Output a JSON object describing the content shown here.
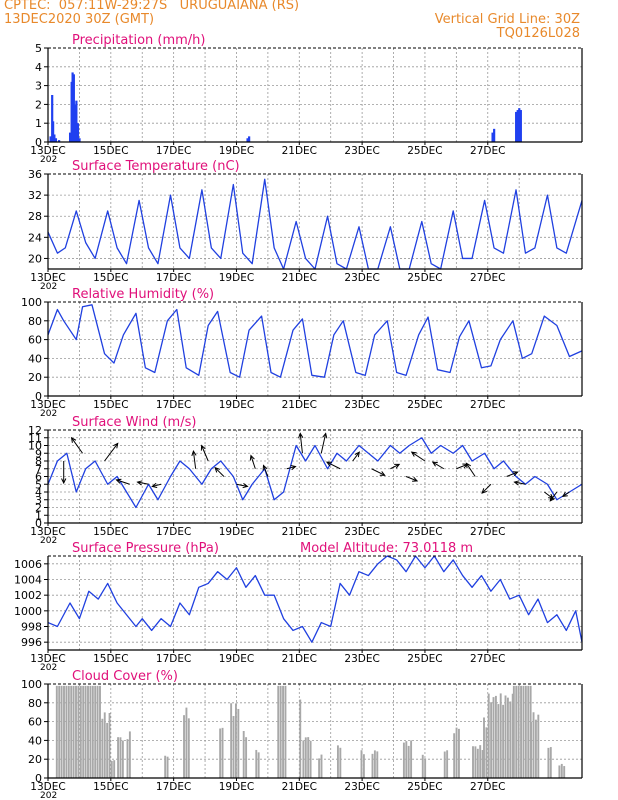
{
  "colors": {
    "header": "#e8892b",
    "title": "#e0107a",
    "line": "#2040e0",
    "bar": "#2040f0",
    "cloud": "#a8a8a8",
    "wind_arrow": "#000000"
  },
  "header": {
    "line1_left": "CPTEC:  057:11W-29:27S   URUGUAIANA (RS)",
    "line2_left": "13DEC2020 30Z (GMT)",
    "line1_right": "Vertical Grid Line: 30Z",
    "line2_right": "TQ0126L028"
  },
  "x_axis": {
    "ticks": [
      "13DEC",
      "15DEC",
      "17DEC",
      "19DEC",
      "21DEC",
      "23DEC",
      "25DEC",
      "27DEC"
    ],
    "under_label": "202"
  },
  "chart_data": [
    {
      "id": "precip",
      "type": "bar",
      "title": "Precipitation (mm/h)",
      "ylim": [
        0,
        5
      ],
      "yticks": [
        0,
        1,
        2,
        3,
        4,
        5
      ],
      "grid": true,
      "x_days": [
        0.08,
        0.13,
        0.16,
        0.2,
        0.25,
        0.35,
        0.7,
        0.75,
        0.78,
        0.82,
        0.86,
        0.9,
        0.95,
        1.0,
        6.35,
        6.4,
        14.15,
        14.2,
        14.9,
        14.95,
        15.0,
        15.05
      ],
      "values": [
        0.3,
        2.5,
        1.1,
        0.4,
        0.2,
        0.1,
        0.5,
        3.2,
        3.7,
        3.6,
        2.0,
        2.2,
        1.0,
        0.2,
        0.2,
        0.3,
        0.5,
        0.7,
        1.6,
        1.7,
        1.8,
        1.7
      ]
    },
    {
      "id": "temp",
      "type": "line",
      "title": "Surface Temperature (nC)",
      "ylim": [
        18,
        36
      ],
      "yticks": [
        20,
        24,
        28,
        32,
        36
      ],
      "grid": true,
      "series": [
        {
          "x": [
            0,
            0.3,
            0.55,
            0.9,
            1.2,
            1.5,
            1.9,
            2.2,
            2.5,
            2.9,
            3.2,
            3.5,
            3.9,
            4.2,
            4.5,
            4.9,
            5.2,
            5.5,
            5.9,
            6.2,
            6.5,
            6.9,
            7.2,
            7.5,
            7.9,
            8.2,
            8.5,
            8.9,
            9.2,
            9.5,
            9.9,
            10.2,
            10.5,
            10.9,
            11.2,
            11.5,
            11.9,
            12.2,
            12.5,
            12.9,
            13.2,
            13.5,
            13.9,
            14.2,
            14.5,
            14.9,
            15.2,
            15.5,
            15.9,
            16.2,
            16.5,
            17.0
          ],
          "values": [
            25,
            21,
            22,
            29,
            23,
            20,
            29,
            22,
            19,
            31,
            22,
            19,
            32,
            22,
            20,
            33,
            22,
            20,
            34,
            21,
            19,
            35,
            22,
            17,
            27,
            20,
            16,
            28,
            19,
            16,
            26,
            17,
            16,
            26,
            18,
            17,
            27,
            19,
            18,
            29,
            20,
            20,
            31,
            22,
            21,
            33,
            21,
            22,
            32,
            22,
            21,
            31
          ]
        }
      ]
    },
    {
      "id": "rh",
      "type": "line",
      "title": "Relative Humidity (%)",
      "ylim": [
        0,
        100
      ],
      "yticks": [
        0,
        20,
        40,
        60,
        80,
        100
      ],
      "grid": true,
      "series": [
        {
          "x": [
            0,
            0.3,
            0.5,
            0.9,
            1.1,
            1.4,
            1.8,
            2.1,
            2.4,
            2.8,
            3.1,
            3.4,
            3.8,
            4.1,
            4.4,
            4.8,
            5.1,
            5.4,
            5.8,
            6.1,
            6.4,
            6.8,
            7.1,
            7.4,
            7.8,
            8.1,
            8.4,
            8.8,
            9.1,
            9.4,
            9.8,
            10.1,
            10.4,
            10.8,
            11.1,
            11.4,
            11.8,
            12.1,
            12.4,
            12.8,
            13.1,
            13.4,
            13.8,
            14.1,
            14.4,
            14.8,
            15.1,
            15.4,
            15.8,
            16.2,
            16.6,
            17.0
          ],
          "values": [
            65,
            92,
            80,
            60,
            95,
            97,
            45,
            35,
            65,
            88,
            30,
            25,
            80,
            92,
            30,
            22,
            75,
            90,
            25,
            20,
            70,
            85,
            25,
            20,
            70,
            82,
            22,
            20,
            65,
            80,
            25,
            22,
            65,
            80,
            25,
            22,
            65,
            84,
            28,
            25,
            63,
            80,
            30,
            32,
            60,
            80,
            40,
            45,
            85,
            75,
            42,
            48
          ]
        }
      ]
    },
    {
      "id": "wind",
      "type": "line",
      "title": "Surface Wind (m/s)",
      "ylim": [
        0,
        12
      ],
      "yticks": [
        0,
        1,
        2,
        3,
        4,
        5,
        6,
        7,
        8,
        9,
        10,
        11,
        12
      ],
      "grid": true,
      "series": [
        {
          "x": [
            0,
            0.3,
            0.6,
            0.9,
            1.2,
            1.5,
            1.9,
            2.2,
            2.5,
            2.8,
            3.2,
            3.5,
            3.9,
            4.2,
            4.5,
            4.9,
            5.2,
            5.5,
            5.9,
            6.2,
            6.5,
            6.9,
            7.2,
            7.5,
            7.9,
            8.2,
            8.5,
            8.9,
            9.2,
            9.5,
            9.9,
            10.2,
            10.5,
            10.9,
            11.2,
            11.5,
            11.9,
            12.2,
            12.5,
            12.9,
            13.2,
            13.5,
            13.9,
            14.2,
            14.5,
            14.9,
            15.2,
            15.5,
            15.9,
            16.2,
            16.6,
            17.0
          ],
          "values": [
            5,
            8,
            9,
            4,
            7,
            8,
            5,
            6,
            4,
            2,
            5,
            3,
            6,
            8,
            7,
            5,
            7,
            8,
            6,
            3,
            5,
            7,
            3,
            4,
            10,
            8,
            10,
            7,
            9,
            8,
            10,
            9,
            8,
            10,
            9,
            10,
            11,
            9,
            10,
            9,
            10,
            8,
            9,
            7,
            8,
            6,
            5,
            6,
            5,
            3,
            4,
            5
          ]
        }
      ],
      "arrows": [
        {
          "x": 0.5,
          "speed": 8,
          "u": 0,
          "v": -10
        },
        {
          "x": 1.1,
          "speed": 9,
          "u": -5,
          "v": 7
        },
        {
          "x": 1.8,
          "speed": 8,
          "u": 6,
          "v": 8
        },
        {
          "x": 2.6,
          "speed": 5,
          "u": -6,
          "v": 2
        },
        {
          "x": 3.2,
          "speed": 5,
          "u": -5,
          "v": 1
        },
        {
          "x": 3.6,
          "speed": 5,
          "u": -4,
          "v": -1
        },
        {
          "x": 4.7,
          "speed": 7,
          "u": -1,
          "v": 8
        },
        {
          "x": 5.1,
          "speed": 8,
          "u": -3,
          "v": 7
        },
        {
          "x": 5.6,
          "speed": 6,
          "u": -4,
          "v": 4
        },
        {
          "x": 6.0,
          "speed": 5,
          "u": 5,
          "v": -1
        },
        {
          "x": 6.6,
          "speed": 7,
          "u": -2,
          "v": 6
        },
        {
          "x": 7.0,
          "speed": 6,
          "u": -2,
          "v": 5
        },
        {
          "x": 7.6,
          "speed": 7,
          "u": 4,
          "v": 1
        },
        {
          "x": 8.1,
          "speed": 9,
          "u": -1,
          "v": 9
        },
        {
          "x": 8.7,
          "speed": 9,
          "u": 2,
          "v": 9
        },
        {
          "x": 9.3,
          "speed": 7,
          "u": -6,
          "v": 3
        },
        {
          "x": 9.7,
          "speed": 8,
          "u": 3,
          "v": 4
        },
        {
          "x": 10.3,
          "speed": 7,
          "u": 6,
          "v": -3
        },
        {
          "x": 10.9,
          "speed": 7,
          "u": 4,
          "v": 2
        },
        {
          "x": 11.4,
          "speed": 6,
          "u": 5,
          "v": -2
        },
        {
          "x": 12.0,
          "speed": 8,
          "u": -6,
          "v": 4
        },
        {
          "x": 12.6,
          "speed": 7,
          "u": -5,
          "v": 3
        },
        {
          "x": 13.0,
          "speed": 7,
          "u": 5,
          "v": 2
        },
        {
          "x": 13.6,
          "speed": 6,
          "u": -4,
          "v": 6
        },
        {
          "x": 14.1,
          "speed": 5,
          "u": -4,
          "v": -4
        },
        {
          "x": 14.6,
          "speed": 6,
          "u": 5,
          "v": 2
        },
        {
          "x": 15.2,
          "speed": 5,
          "u": -5,
          "v": 1
        },
        {
          "x": 15.8,
          "speed": 4,
          "u": 4,
          "v": -3
        },
        {
          "x": 16.2,
          "speed": 4,
          "u": -3,
          "v": -4
        },
        {
          "x": 16.6,
          "speed": 4,
          "u": -3,
          "v": -2
        }
      ]
    },
    {
      "id": "pres",
      "type": "line",
      "title": "Surface Pressure (hPa)",
      "extra_label": "Model Altitude: 73.0118 m",
      "ylim": [
        995,
        1007
      ],
      "yticks": [
        996,
        998,
        1000,
        1002,
        1004,
        1006
      ],
      "grid": true,
      "series": [
        {
          "x": [
            0,
            0.3,
            0.7,
            1.0,
            1.3,
            1.6,
            1.9,
            2.2,
            2.5,
            2.8,
            3.0,
            3.3,
            3.6,
            3.9,
            4.2,
            4.5,
            4.8,
            5.1,
            5.4,
            5.7,
            6.0,
            6.3,
            6.6,
            6.9,
            7.2,
            7.5,
            7.8,
            8.1,
            8.4,
            8.7,
            9.0,
            9.3,
            9.6,
            9.9,
            10.2,
            10.5,
            10.8,
            11.1,
            11.4,
            11.7,
            12.0,
            12.3,
            12.6,
            12.9,
            13.2,
            13.5,
            13.8,
            14.1,
            14.4,
            14.7,
            15.0,
            15.3,
            15.6,
            15.9,
            16.2,
            16.5,
            16.8,
            17.0
          ],
          "values": [
            998.5,
            998,
            1001,
            999,
            1002.5,
            1001.5,
            1003.5,
            1001,
            999.5,
            998,
            999,
            997.5,
            999,
            998,
            1001,
            999.5,
            1003,
            1003.5,
            1005,
            1004,
            1005.5,
            1003,
            1004.5,
            1002,
            1002,
            999,
            997.5,
            998,
            996,
            998.5,
            998,
            1003.5,
            1002,
            1005,
            1004.5,
            1006,
            1007.5,
            1006.5,
            1005,
            1007,
            1005.5,
            1007.5,
            1005,
            1006.5,
            1004.5,
            1003,
            1004.5,
            1002.5,
            1004,
            1001.5,
            1002,
            999.5,
            1001.5,
            998.5,
            999.5,
            997.5,
            1000,
            996
          ]
        }
      ]
    },
    {
      "id": "cloud",
      "type": "bar",
      "title": "Cloud Cover (%)",
      "ylim": [
        0,
        100
      ],
      "yticks": [
        0,
        20,
        40,
        60,
        80,
        100
      ],
      "grid": true,
      "segments": [
        {
          "from": 0.25,
          "to": 1.7,
          "value": 98
        },
        {
          "from": 1.7,
          "to": 2.0,
          "value": 70
        },
        {
          "from": 2.0,
          "to": 2.1,
          "value": 20
        },
        {
          "from": 2.2,
          "to": 2.4,
          "value": 45
        },
        {
          "from": 2.5,
          "to": 2.6,
          "value": 50
        },
        {
          "from": 3.7,
          "to": 3.85,
          "value": 25
        },
        {
          "from": 4.3,
          "to": 4.5,
          "value": 75
        },
        {
          "from": 5.45,
          "to": 5.55,
          "value": 55
        },
        {
          "from": 5.8,
          "to": 6.05,
          "value": 80
        },
        {
          "from": 6.2,
          "to": 6.3,
          "value": 50
        },
        {
          "from": 6.6,
          "to": 6.75,
          "value": 30
        },
        {
          "from": 7.3,
          "to": 7.6,
          "value": 98
        },
        {
          "from": 8.0,
          "to": 8.05,
          "value": 85
        },
        {
          "from": 8.1,
          "to": 8.35,
          "value": 45
        },
        {
          "from": 8.6,
          "to": 8.75,
          "value": 25
        },
        {
          "from": 9.2,
          "to": 9.35,
          "value": 35
        },
        {
          "from": 9.95,
          "to": 10.1,
          "value": 30
        },
        {
          "from": 10.3,
          "to": 10.5,
          "value": 30
        },
        {
          "from": 11.3,
          "to": 11.55,
          "value": 40
        },
        {
          "from": 11.9,
          "to": 12.05,
          "value": 25
        },
        {
          "from": 12.6,
          "to": 12.75,
          "value": 30
        },
        {
          "from": 12.9,
          "to": 13.1,
          "value": 55
        },
        {
          "from": 13.5,
          "to": 13.85,
          "value": 35
        },
        {
          "from": 13.85,
          "to": 14.0,
          "value": 65
        },
        {
          "from": 14.0,
          "to": 14.8,
          "value": 90
        },
        {
          "from": 14.8,
          "to": 15.35,
          "value": 98
        },
        {
          "from": 15.35,
          "to": 15.6,
          "value": 70
        },
        {
          "from": 15.9,
          "to": 16.05,
          "value": 35
        },
        {
          "from": 16.25,
          "to": 16.45,
          "value": 15
        }
      ]
    }
  ]
}
